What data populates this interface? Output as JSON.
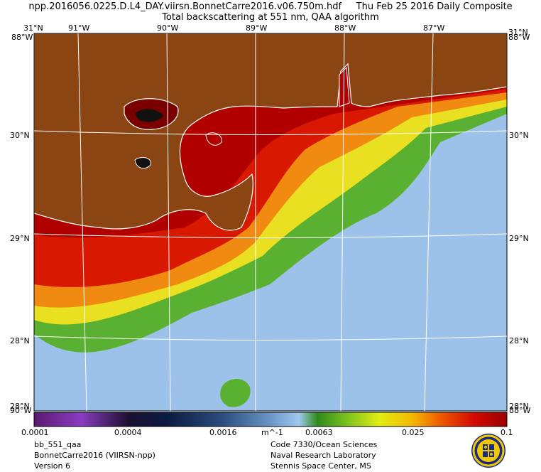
{
  "header": {
    "file_line": "npp.2016056.0225.D.L4_DAY.viirsn.BonnetCarre2016.v06.750m.hdf     Thu Feb 25 2016 Daily Composite",
    "subtitle": "Total backscattering at 551 nm, QAA algorithm"
  },
  "map": {
    "lon_labels": [
      "91°W",
      "90°W",
      "89°W",
      "88°W",
      "87°W"
    ],
    "lat_labels": [
      "30°N",
      "29°N",
      "28°N"
    ],
    "corner_labels": {
      "top_left": "31°N",
      "top_right": "31°N",
      "left_top": "88°W",
      "right_top": "88°W",
      "left_bottom": "90°W",
      "right_bottom": "88°W",
      "bottom_left_lat": "28°N",
      "bottom_right_lat": "28°N"
    },
    "land_color": "#8b4513",
    "coast_color": "#ffffff",
    "grid_color": "#ffffff"
  },
  "colorbar": {
    "ticks": [
      "0.0001",
      "0.0004",
      "0.0016",
      "0.0063",
      "0.025",
      "0.1"
    ],
    "unit": "m^-1",
    "scale": "log",
    "range": [
      0.0001,
      0.1
    ]
  },
  "footer": {
    "left": [
      "bb_551_qaa",
      "BonnetCarre2016 (VIIRSN-npp)",
      "Version 6"
    ],
    "right": [
      "Code 7330/Ocean Sciences",
      "Naval Research Laboratory",
      "Stennis Space Center, MS"
    ]
  },
  "logo": {
    "icon": "nrl-seal-icon"
  }
}
